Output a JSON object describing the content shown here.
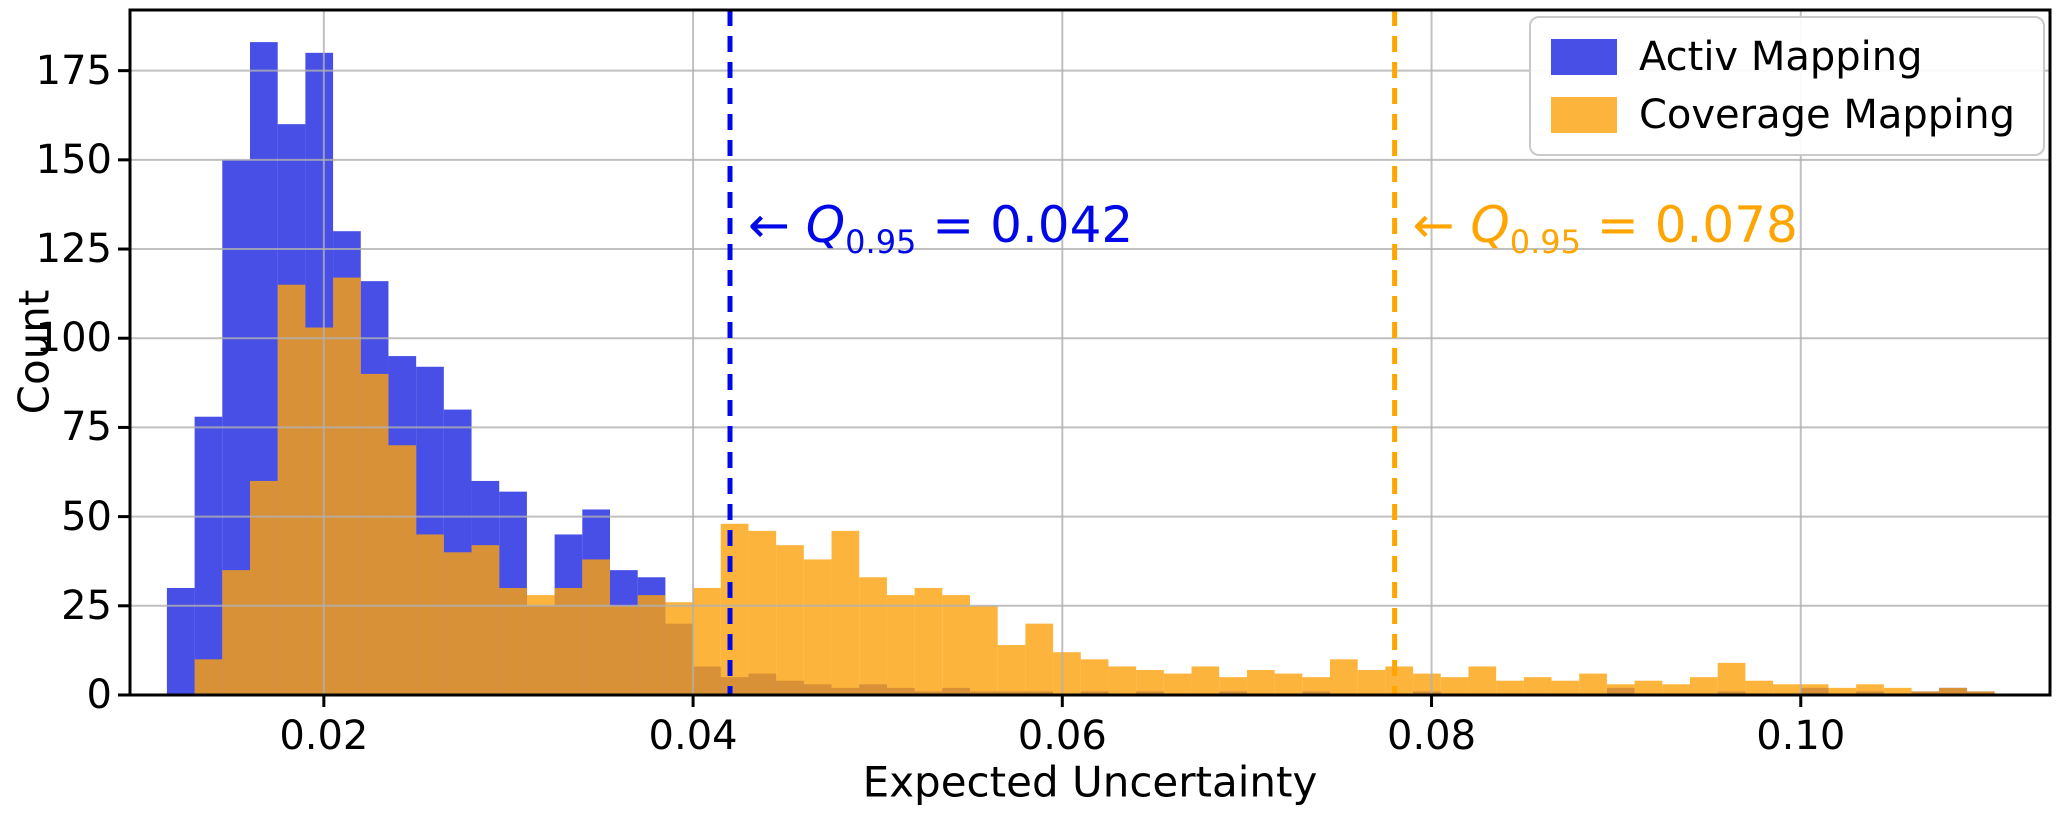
{
  "chart_data": {
    "type": "bar",
    "subtype": "histogram-overlay",
    "title": "",
    "xlabel": "Expected Uncertainty",
    "ylabel": "Count",
    "xlim": [
      0.0095,
      0.1135
    ],
    "ylim": [
      0,
      192
    ],
    "grid": true,
    "grid_color": "#b0b0b0",
    "background": "#ffffff",
    "legend_position": "upper right",
    "bin_start": 0.0115,
    "bin_width": 0.0015,
    "xticks": [
      0.02,
      0.04,
      0.06,
      0.08,
      0.1
    ],
    "xtick_labels": [
      "0.02",
      "0.04",
      "0.06",
      "0.08",
      "0.10"
    ],
    "yticks": [
      0,
      25,
      50,
      75,
      100,
      125,
      150,
      175
    ],
    "ytick_labels": [
      "0",
      "25",
      "50",
      "75",
      "100",
      "125",
      "150",
      "175"
    ],
    "series": [
      {
        "name": "Activ Mapping",
        "color": "#1a23e0",
        "fill_opacity": 0.8,
        "values": [
          30,
          78,
          150,
          183,
          160,
          180,
          130,
          116,
          95,
          92,
          80,
          60,
          57,
          25,
          45,
          52,
          35,
          33,
          20,
          8,
          5,
          6,
          4,
          3,
          2,
          3,
          2,
          1,
          2,
          1,
          1,
          1,
          0,
          1,
          0,
          1,
          0,
          0,
          1,
          0,
          0,
          1,
          0,
          0,
          0,
          1,
          0,
          0,
          0,
          0,
          0,
          0,
          2,
          0,
          0,
          0,
          1,
          0,
          0,
          2,
          0,
          1,
          0,
          1,
          2,
          1
        ]
      },
      {
        "name": "Coverage Mapping",
        "color": "#fca10b",
        "fill_opacity": 0.8,
        "values": [
          0,
          10,
          35,
          60,
          115,
          103,
          117,
          90,
          70,
          45,
          40,
          42,
          30,
          28,
          30,
          38,
          25,
          28,
          26,
          30,
          48,
          46,
          42,
          38,
          46,
          33,
          28,
          30,
          28,
          25,
          14,
          20,
          12,
          10,
          8,
          7,
          6,
          8,
          5,
          7,
          6,
          5,
          10,
          7,
          8,
          6,
          5,
          8,
          4,
          5,
          4,
          6,
          3,
          4,
          3,
          5,
          9,
          4,
          3,
          3,
          2,
          3,
          2,
          1,
          2,
          1
        ]
      }
    ],
    "annotations": [
      {
        "arrow": "← ",
        "q": "Q",
        "sub": "0.95",
        "rest": " = 0.042",
        "x": 0.042,
        "color": "#0008e8",
        "line_style": "dashed"
      },
      {
        "arrow": "← ",
        "q": "Q",
        "sub": "0.95",
        "rest": " = 0.078",
        "x": 0.078,
        "color": "#ffa502",
        "line_style": "dashed"
      }
    ]
  }
}
